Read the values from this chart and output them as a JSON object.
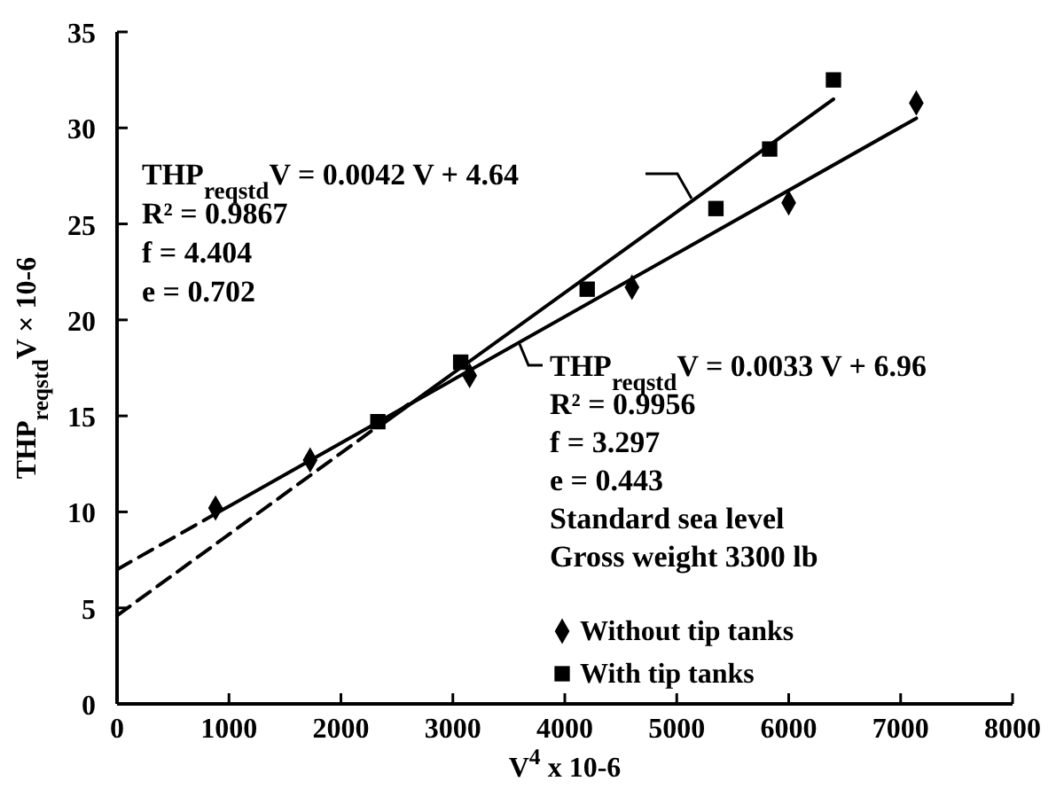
{
  "chart_data": {
    "type": "scatter",
    "xlabel": "V$^{4}$ x 10-6",
    "ylabel": "THP$_{reqstd}$V × 10-6",
    "xlim": [
      0,
      8000
    ],
    "xticks": [
      0,
      1000,
      2000,
      3000,
      4000,
      5000,
      6000,
      7000,
      8000
    ],
    "ylim": [
      0,
      35
    ],
    "yticks": [
      0,
      5,
      10,
      15,
      20,
      25,
      30,
      35
    ],
    "grid": false,
    "legend": "bottom right",
    "series": [
      {
        "name": "Without tip tanks",
        "marker": "diamond",
        "color": "#000000",
        "x": [
          880,
          1725,
          3150,
          4600,
          6000,
          7140
        ],
        "values": [
          10.2,
          12.7,
          17.1,
          21.7,
          26.1,
          31.3
        ]
      },
      {
        "name": "With tip tanks",
        "marker": "square",
        "color": "#000000",
        "x": [
          2330,
          3070,
          4200,
          5350,
          5830,
          6400
        ],
        "values": [
          14.7,
          17.8,
          21.6,
          25.8,
          28.9,
          32.5
        ]
      },
      {
        "type": "line",
        "line_style": "solid",
        "color": "#000000",
        "x": [
          880,
          7140
        ],
        "values": [
          9.9,
          30.5
        ]
      },
      {
        "type": "line",
        "line_style": "dashed",
        "color": "#000000",
        "x": [
          0,
          880
        ],
        "values": [
          7.0,
          9.9
        ]
      },
      {
        "type": "line",
        "line_style": "solid",
        "color": "#000000",
        "x": [
          2330,
          6400
        ],
        "values": [
          14.4,
          31.5
        ]
      },
      {
        "type": "line",
        "line_style": "dashed",
        "color": "#000000",
        "x": [
          0,
          2600
        ],
        "values": [
          4.6,
          15.6
        ]
      }
    ],
    "annotations": [
      "THP$_{reqstd}$V = 0.0042 V + 4.64",
      "R² = 0.9867",
      "f = 4.404",
      "e = 0.702",
      "THP$_{reqstd}$V = 0.0033 V + 6.96",
      "R² = 0.9956",
      "f = 3.297",
      "e = 0.443",
      "Standard sea level",
      "Gross weight 3300 lb"
    ]
  }
}
